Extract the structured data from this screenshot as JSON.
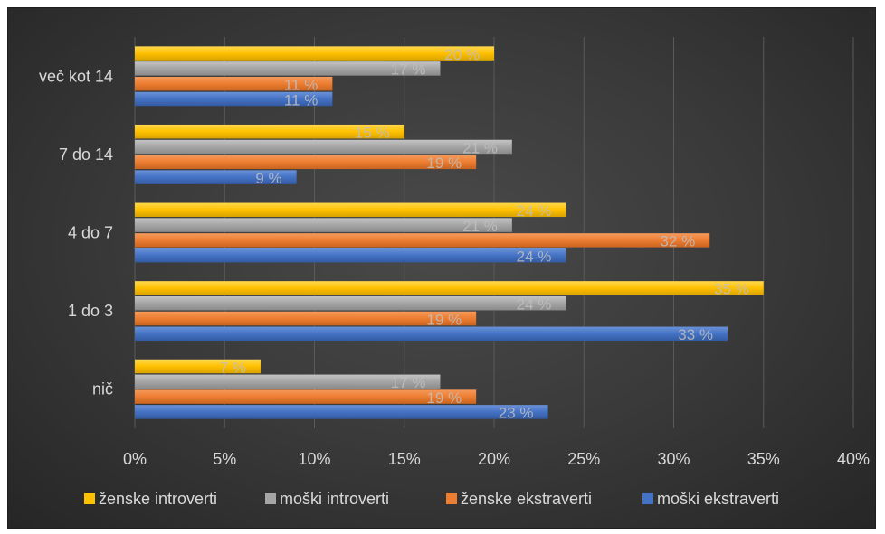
{
  "chart_data": {
    "type": "bar",
    "orientation": "horizontal",
    "categories": [
      "več kot 14",
      "7 do 14",
      "4 do 7",
      "1 do 3",
      "nič"
    ],
    "series": [
      {
        "name": "ženske introverti",
        "color": "#ffc000",
        "values": [
          20,
          15,
          24,
          35,
          7
        ]
      },
      {
        "name": "moški introverti",
        "color": "#a5a5a5",
        "values": [
          17,
          21,
          21,
          24,
          17
        ]
      },
      {
        "name": "ženske ekstraverti",
        "color": "#ed7d31",
        "values": [
          11,
          19,
          32,
          19,
          19
        ]
      },
      {
        "name": "moški ekstraverti",
        "color": "#4472c4",
        "values": [
          11,
          9,
          24,
          33,
          23
        ]
      }
    ],
    "xlim": [
      0,
      40
    ],
    "x_ticks": [
      "0%",
      "5%",
      "10%",
      "15%",
      "20%",
      "25%",
      "30%",
      "35%",
      "40%"
    ],
    "value_suffix": " %",
    "grid": true,
    "legend_position": "bottom"
  }
}
